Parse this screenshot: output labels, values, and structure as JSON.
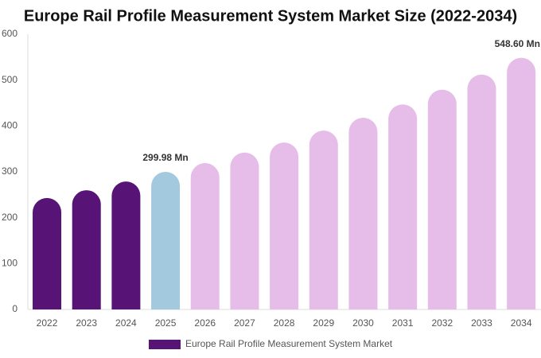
{
  "chart_data": {
    "type": "bar",
    "title": "Europe Rail Profile Measurement System Market Size (2022-2034)",
    "categories": [
      "2022",
      "2023",
      "2024",
      "2025",
      "2026",
      "2027",
      "2028",
      "2029",
      "2030",
      "2031",
      "2032",
      "2033",
      "2034"
    ],
    "series": [
      {
        "name": "Europe Rail Profile Measurement System Market",
        "color": "#581376",
        "values": [
          243,
          260,
          279,
          299.98,
          319,
          342,
          364,
          390,
          418,
          447,
          479,
          512,
          548.6
        ],
        "value_labels": [
          null,
          null,
          null,
          "299.98 Mn",
          null,
          null,
          null,
          null,
          null,
          null,
          null,
          null,
          "548.60 Mn"
        ],
        "colors": [
          "#581376",
          "#581376",
          "#581376",
          "#a3c9de",
          "#e6bde8",
          "#e6bde8",
          "#e6bde8",
          "#e6bde8",
          "#e6bde8",
          "#e6bde8",
          "#e6bde8",
          "#e6bde8",
          "#e6bde8"
        ]
      }
    ],
    "ylim": [
      0,
      600
    ],
    "yticks": [
      0,
      100,
      200,
      300,
      400,
      500,
      600
    ],
    "grid": false
  }
}
